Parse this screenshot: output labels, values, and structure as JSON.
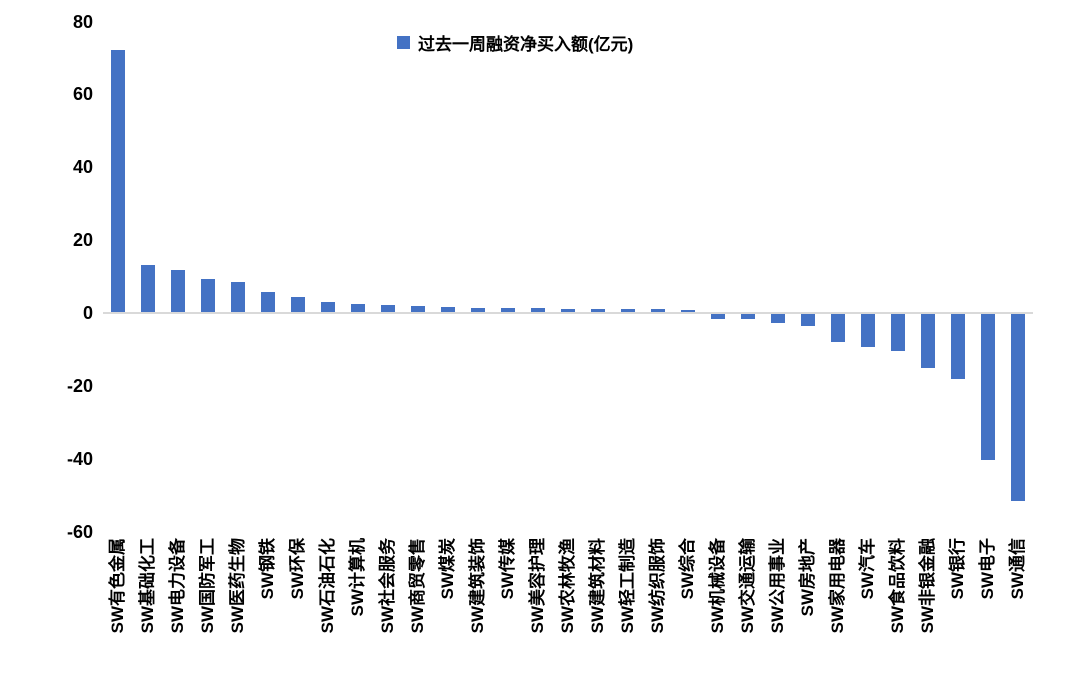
{
  "chart_data": {
    "type": "bar",
    "title": "",
    "legend_position": "top-center",
    "grid": false,
    "bar_color": "#4472C4",
    "axis_line_color": "#d9d9d9",
    "text_color": "#000000",
    "ylim": [
      -60,
      80
    ],
    "ytick_interval": 20,
    "yticks": [
      80,
      60,
      40,
      20,
      0,
      -20,
      -40,
      -60
    ],
    "categories": [
      "SW有色金属",
      "SW基础化工",
      "SW电力设备",
      "SW国防军工",
      "SW医药生物",
      "SW钢铁",
      "SW环保",
      "SW石油石化",
      "SW计算机",
      "SW社会服务",
      "SW商贸零售",
      "SW煤炭",
      "SW建筑装饰",
      "SW传媒",
      "SW美容护理",
      "SW农林牧渔",
      "SW建筑材料",
      "SW轻工制造",
      "SW纺织服饰",
      "SW综合",
      "SW机械设备",
      "SW交通运输",
      "SW公用事业",
      "SW房地产",
      "SW家用电器",
      "SW汽车",
      "SW食品饮料",
      "SW非银金融",
      "SW银行",
      "SW电子",
      "SW通信"
    ],
    "series": [
      {
        "name": "过去一周融资净买入额(亿元)",
        "values": [
          72,
          13,
          11.5,
          9,
          8.2,
          5.4,
          4,
          2.8,
          2.2,
          1.8,
          1.6,
          1.4,
          1.2,
          1.1,
          1.0,
          0.9,
          0.85,
          0.8,
          0.75,
          0.6,
          -1.4,
          -1.5,
          -2.5,
          -3.2,
          -7.7,
          -9.1,
          -10.2,
          -14.8,
          -17.8,
          -40,
          -51.2
        ]
      }
    ]
  }
}
